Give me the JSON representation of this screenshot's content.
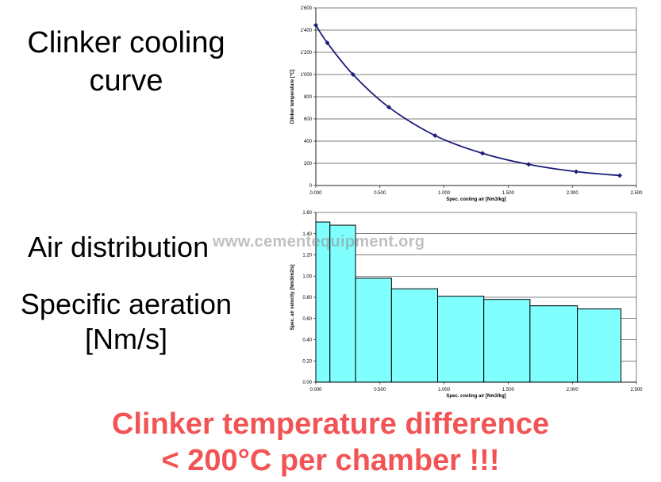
{
  "labels": {
    "cooling_curve": [
      "Clinker cooling",
      "curve"
    ],
    "air_distribution": "Air distribution",
    "specific_aeration": [
      "Specific aeration",
      "[Nm/s]"
    ],
    "footer": [
      "Clinker temperature difference",
      "< 200°C per chamber !!!"
    ],
    "watermark": "www.cementequipment.org"
  },
  "colors": {
    "accent_red": "#f25455",
    "line": "#1c1c7a",
    "bar_fill": "#80ffff"
  },
  "chart_data": [
    {
      "type": "line",
      "xlabel": "Spec. cooling air [Nm3/kg]",
      "ylabel": "Clinker temperature [°C]",
      "xlim": [
        0,
        2.5
      ],
      "ylim": [
        0,
        1600
      ],
      "x_ticks": [
        "0.000",
        "0.500",
        "1.000",
        "1.500",
        "2.000",
        "2.500"
      ],
      "y_ticks": [
        "0",
        "200",
        "400",
        "600",
        "800",
        "1'000",
        "1'200",
        "1'400",
        "1'600"
      ],
      "grid": true,
      "series": [
        {
          "x": [
            0.0,
            0.09,
            0.29,
            0.57,
            0.93,
            1.3,
            1.66,
            2.03,
            2.37
          ],
          "y": [
            1445,
            1285,
            1000,
            705,
            450,
            290,
            190,
            125,
            90
          ]
        }
      ]
    },
    {
      "type": "bar",
      "xlabel": "Spec. cooling air [Nm3/kg]",
      "ylabel": "Spec. air velocity [Nm3/m2/s]",
      "xlim": [
        0,
        2.5
      ],
      "ylim": [
        0,
        1.6
      ],
      "x_ticks": [
        "0.000",
        "0.500",
        "1.000",
        "1.500",
        "2.000",
        "2.500"
      ],
      "y_ticks": [
        "0.00",
        "0.20",
        "0.40",
        "0.60",
        "0.80",
        "1.00",
        "1.20",
        "1.40",
        "1.60"
      ],
      "grid": true,
      "bars": [
        {
          "x_start": 0.0,
          "x_end": 0.11,
          "value": 1.51
        },
        {
          "x_start": 0.11,
          "x_end": 0.31,
          "value": 1.48
        },
        {
          "x_start": 0.31,
          "x_end": 0.59,
          "value": 0.98
        },
        {
          "x_start": 0.59,
          "x_end": 0.95,
          "value": 0.88
        },
        {
          "x_start": 0.95,
          "x_end": 1.31,
          "value": 0.81
        },
        {
          "x_start": 1.31,
          "x_end": 1.67,
          "value": 0.78
        },
        {
          "x_start": 1.67,
          "x_end": 2.04,
          "value": 0.72
        },
        {
          "x_start": 2.04,
          "x_end": 2.38,
          "value": 0.69
        }
      ]
    }
  ]
}
